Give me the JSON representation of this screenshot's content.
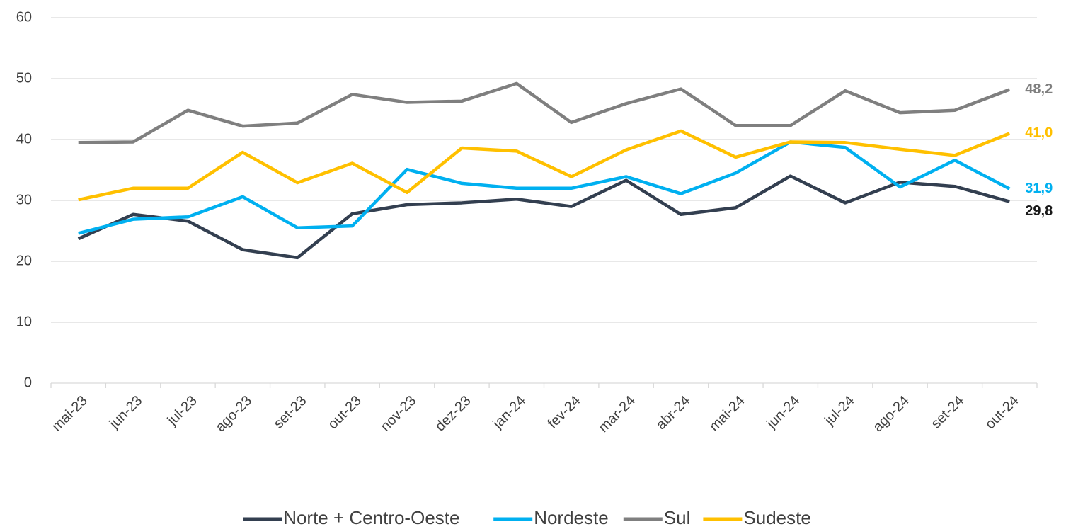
{
  "chart_data": {
    "type": "line",
    "categories": [
      "mai-23",
      "jun-23",
      "jul-23",
      "ago-23",
      "set-23",
      "out-23",
      "nov-23",
      "dez-23",
      "jan-24",
      "fev-24",
      "mar-24",
      "abr-24",
      "mai-24",
      "jun-24",
      "jul-24",
      "ago-24",
      "set-24",
      "out-24"
    ],
    "series": [
      {
        "name": "Norte + Centro-Oeste",
        "color": "#333f50",
        "values": [
          23.7,
          27.7,
          26.6,
          21.9,
          20.6,
          27.8,
          29.3,
          29.6,
          30.2,
          29.0,
          33.3,
          27.7,
          28.8,
          34.0,
          29.6,
          33.0,
          32.3,
          29.8
        ],
        "value_labels": [
          null,
          null,
          null,
          null,
          null,
          null,
          null,
          null,
          null,
          null,
          null,
          null,
          null,
          null,
          null,
          null,
          null,
          "29,8"
        ]
      },
      {
        "name": "Nordeste",
        "color": "#00b0f0",
        "values": [
          24.6,
          26.9,
          27.3,
          30.6,
          25.5,
          25.8,
          35.1,
          32.8,
          32.0,
          32.0,
          33.9,
          31.1,
          34.5,
          39.6,
          38.7,
          32.2,
          36.6,
          31.9
        ],
        "value_labels": [
          null,
          null,
          null,
          null,
          null,
          null,
          null,
          null,
          null,
          null,
          null,
          null,
          null,
          null,
          null,
          null,
          null,
          "31,9"
        ]
      },
      {
        "name": "Sul",
        "color": "#7f7f7f",
        "values": [
          39.5,
          39.6,
          44.8,
          42.2,
          42.7,
          47.4,
          46.1,
          46.3,
          49.2,
          42.8,
          45.9,
          48.3,
          42.3,
          42.3,
          48.0,
          44.4,
          44.8,
          48.2
        ],
        "value_labels": [
          null,
          null,
          null,
          null,
          null,
          null,
          null,
          null,
          null,
          null,
          null,
          null,
          null,
          null,
          null,
          null,
          null,
          "48,2"
        ]
      },
      {
        "name": "Sudeste",
        "color": "#ffc000",
        "values": [
          30.1,
          32.0,
          32.0,
          37.9,
          32.9,
          36.1,
          31.3,
          38.6,
          38.1,
          33.9,
          38.3,
          41.4,
          37.1,
          39.6,
          39.5,
          38.4,
          37.4,
          41.0
        ],
        "value_labels": [
          null,
          null,
          null,
          null,
          null,
          null,
          null,
          null,
          null,
          null,
          null,
          null,
          null,
          null,
          null,
          null,
          null,
          "41,0"
        ]
      }
    ],
    "ylim": [
      0,
      60
    ],
    "yticks": [
      0,
      10,
      20,
      30,
      40,
      50,
      60
    ],
    "grid": true,
    "legend": "bottom"
  }
}
